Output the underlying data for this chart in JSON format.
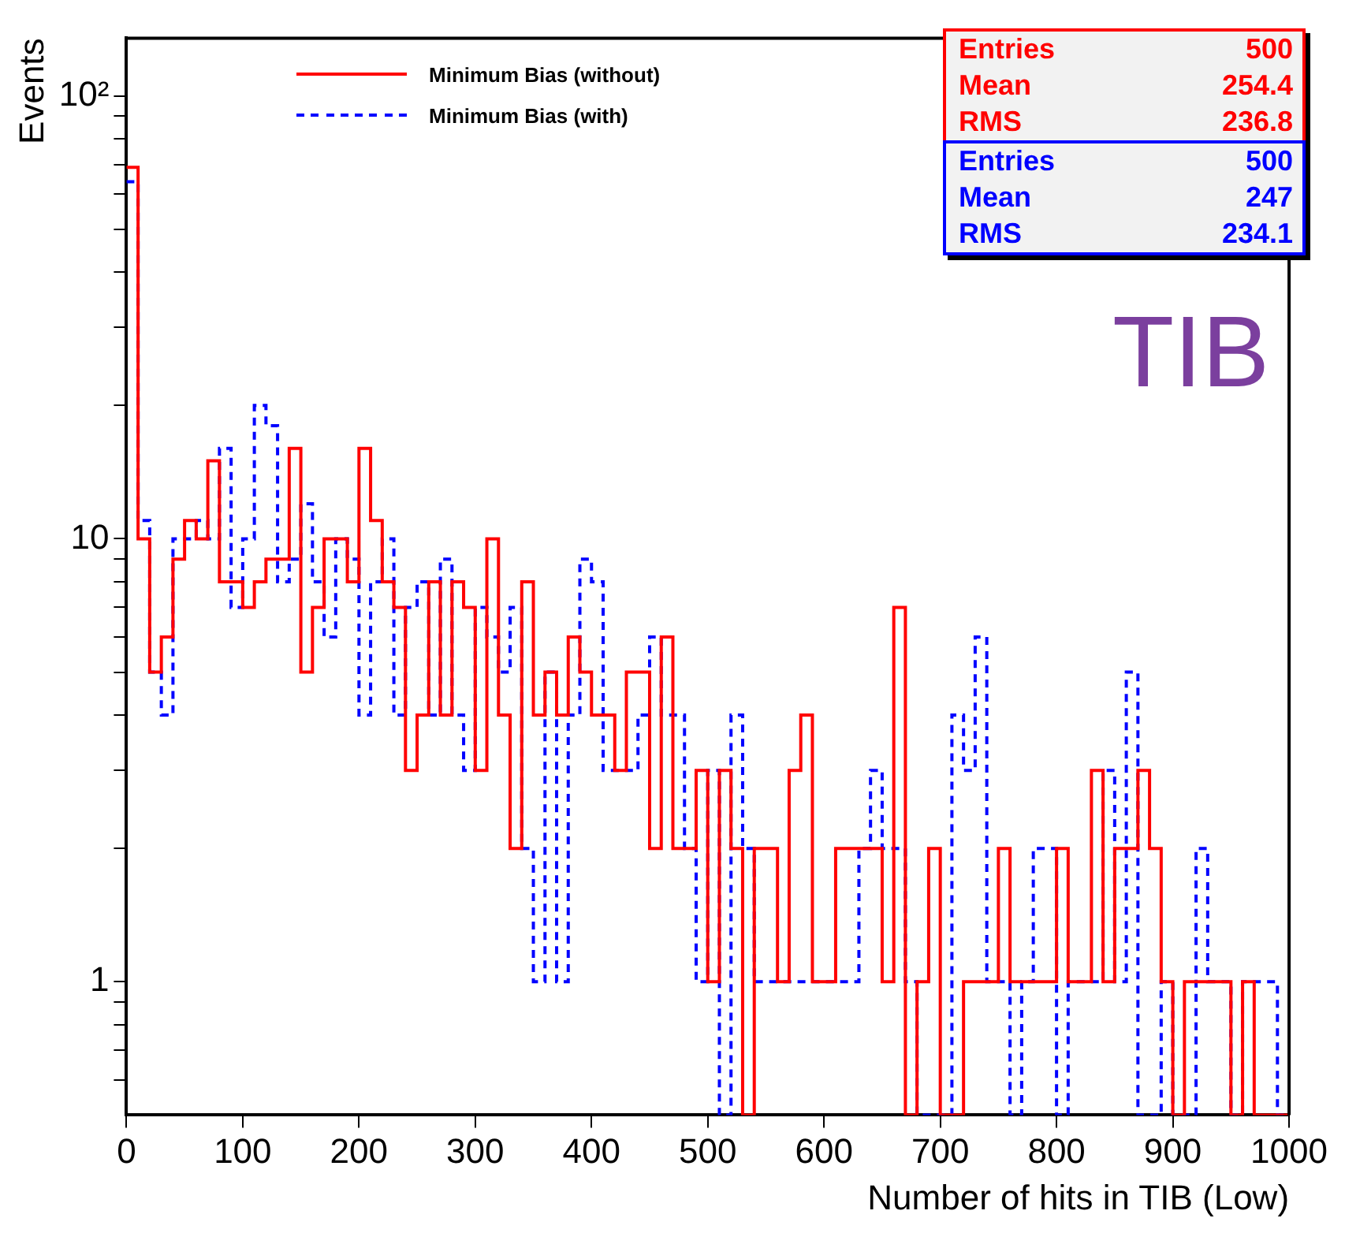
{
  "chart_data": {
    "type": "histogram",
    "xlabel": "Number of hits in TIB (Low)",
    "ylabel": "Events",
    "bins": [
      0,
      10,
      20,
      30,
      40,
      50,
      60,
      70,
      80,
      90,
      100,
      110,
      120,
      130,
      140,
      150,
      160,
      170,
      180,
      190,
      200,
      210,
      220,
      230,
      240,
      250,
      260,
      270,
      280,
      290,
      300,
      310,
      320,
      330,
      340,
      350,
      360,
      370,
      380,
      390,
      400,
      410,
      420,
      430,
      440,
      450,
      460,
      470,
      480,
      490,
      500,
      510,
      520,
      530,
      540,
      550,
      560,
      570,
      580,
      590,
      600,
      610,
      620,
      630,
      640,
      650,
      660,
      670,
      680,
      690,
      700,
      710,
      720,
      730,
      740,
      750,
      760,
      770,
      780,
      790,
      800,
      810,
      820,
      830,
      840,
      850,
      860,
      870,
      880,
      890,
      900,
      910,
      920,
      930,
      940,
      950,
      960,
      970,
      980,
      990,
      1000
    ],
    "series": [
      {
        "name": "Minimum Bias (without)",
        "color": "#ff0000",
        "line_style": "solid",
        "values": [
          69,
          10,
          5,
          6,
          9,
          11,
          10,
          15,
          8,
          8,
          7,
          8,
          9,
          9,
          16,
          5,
          7,
          10,
          10,
          8,
          16,
          11,
          8,
          7,
          3,
          4,
          8,
          4,
          8,
          7,
          3,
          10,
          4,
          2,
          8,
          4,
          5,
          4,
          6,
          5,
          4,
          4,
          3,
          5,
          5,
          2,
          6,
          2,
          2,
          3,
          1,
          3,
          2,
          null,
          2,
          2,
          1,
          3,
          4,
          1,
          1,
          2,
          2,
          2,
          2,
          1,
          7,
          null,
          1,
          2,
          null,
          null,
          1,
          1,
          1,
          2,
          1,
          1,
          1,
          1,
          2,
          1,
          1,
          3,
          1,
          2,
          2,
          3,
          2,
          1,
          null,
          1,
          1,
          1,
          1,
          null,
          1,
          null,
          null,
          null
        ]
      },
      {
        "name": "Minimum Bias (with)",
        "color": "#0000ff",
        "line_style": "dashed",
        "values": [
          64,
          11,
          5,
          4,
          10,
          10,
          11,
          10,
          16,
          7,
          10,
          20,
          18,
          8,
          9,
          12,
          8,
          6,
          10,
          9,
          4,
          8,
          10,
          4,
          7,
          8,
          4,
          9,
          4,
          3,
          7,
          6,
          5,
          7,
          2,
          1,
          5,
          1,
          4,
          9,
          8,
          3,
          3,
          3,
          4,
          6,
          4,
          4,
          2,
          1,
          3,
          null,
          4,
          2,
          1,
          1,
          1,
          1,
          1,
          1,
          1,
          1,
          1,
          2,
          3,
          2,
          2,
          1,
          null,
          null,
          null,
          4,
          3,
          6,
          1,
          1,
          null,
          1,
          2,
          2,
          null,
          1,
          1,
          1,
          3,
          1,
          5,
          null,
          null,
          1,
          null,
          null,
          2,
          1,
          1,
          null,
          1,
          1,
          1,
          null
        ]
      }
    ],
    "log": "y",
    "xlim": [
      0,
      1000
    ],
    "xticks": [
      0,
      100,
      200,
      300,
      400,
      500,
      600,
      700,
      800,
      900,
      1000
    ],
    "ylim": [
      0.5,
      135
    ],
    "yticks": [
      {
        "value": 0.6,
        "label": null
      },
      {
        "value": 0.7,
        "label": null
      },
      {
        "value": 0.8,
        "label": null
      },
      {
        "value": 0.9,
        "label": null
      },
      1,
      {
        "value": 2,
        "label": null
      },
      {
        "value": 3,
        "label": null
      },
      {
        "value": 4,
        "label": null
      },
      {
        "value": 5,
        "label": null
      },
      {
        "value": 6,
        "label": null
      },
      {
        "value": 7,
        "label": null
      },
      {
        "value": 8,
        "label": null
      },
      {
        "value": 9,
        "label": null
      },
      10,
      {
        "value": 20,
        "label": null
      },
      {
        "value": 30,
        "label": null
      },
      {
        "value": 40,
        "label": null
      },
      {
        "value": 50,
        "label": null
      },
      {
        "value": 60,
        "label": null
      },
      {
        "value": 70,
        "label": null
      },
      {
        "value": 80,
        "label": null
      },
      {
        "value": 90,
        "label": null
      },
      {
        "value": 100,
        "label": "10²"
      }
    ],
    "grid": false,
    "legend": "top left",
    "annotations": [
      "Entries 500",
      "Mean 254.4",
      "RMS 236.8",
      "Entries 500",
      "Mean 247",
      "RMS 234.1",
      "TIB"
    ]
  }
}
